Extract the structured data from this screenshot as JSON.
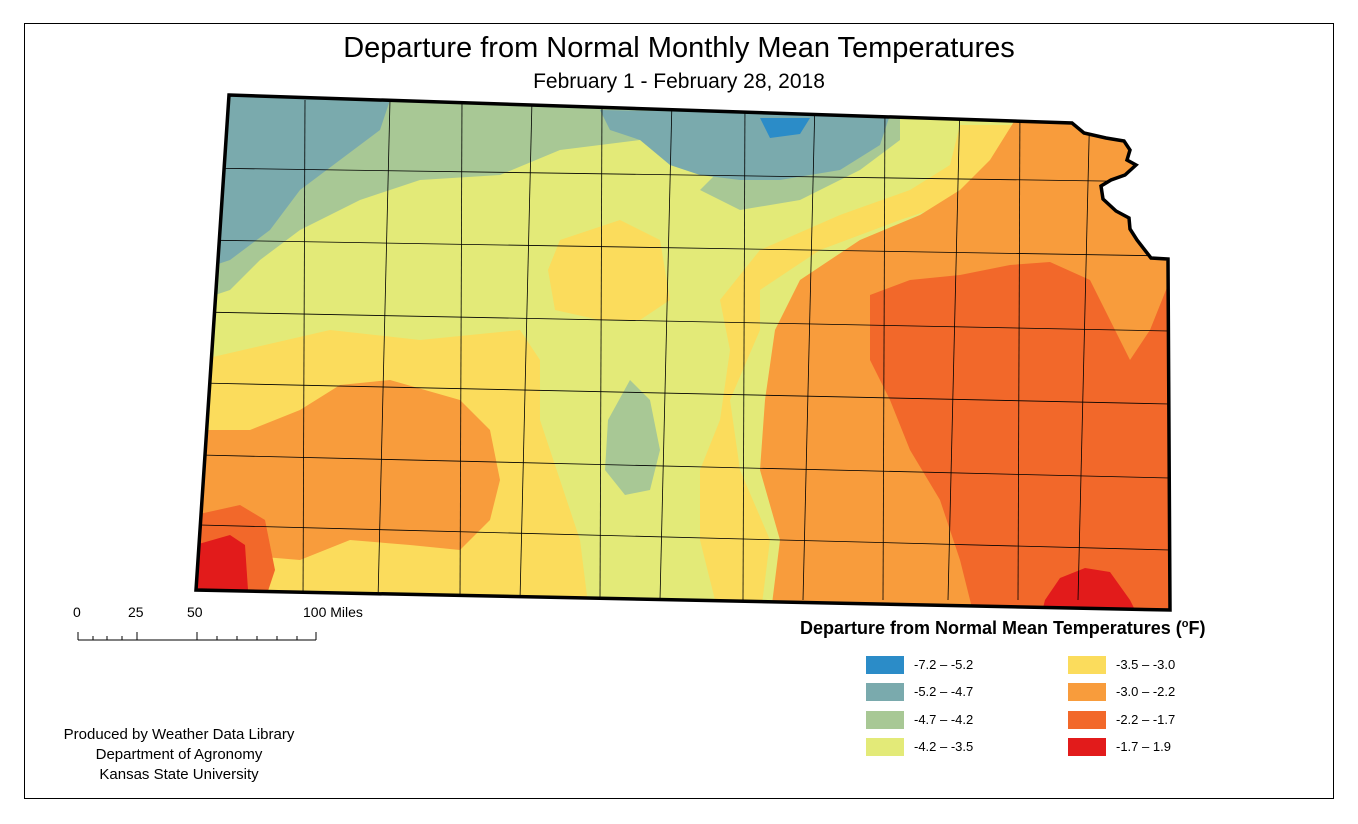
{
  "title": "Departure from Normal Monthly Mean Temperatures",
  "subtitle": "February 1 - February 28, 2018",
  "legend": {
    "title": "Departure from Normal Mean Temperatures (",
    "unit_sup": "o",
    "unit_after": "F)",
    "classes": [
      {
        "label": "-7.2 – -5.2",
        "color": "#2b8cc8"
      },
      {
        "label": "-5.2 – -4.7",
        "color": "#7aaaad"
      },
      {
        "label": "-4.7 – -4.2",
        "color": "#a8c895"
      },
      {
        "label": "-4.2 – -3.5",
        "color": "#e3ea78"
      },
      {
        "label": "-3.5 – -3.0",
        "color": "#fbdc5c"
      },
      {
        "label": "-3.0 – -2.2",
        "color": "#f89c3c"
      },
      {
        "label": "-2.2 – -1.7",
        "color": "#f2682a"
      },
      {
        "label": "-1.7 – 1.9",
        "color": "#e21b1b"
      }
    ]
  },
  "scale_bar": {
    "ticks": [
      "0",
      "25",
      "50",
      "100 Miles"
    ]
  },
  "credits": {
    "line1": "Produced by Weather Data Library",
    "line2": "Department of Agronomy",
    "line3": "Kansas State University"
  }
}
